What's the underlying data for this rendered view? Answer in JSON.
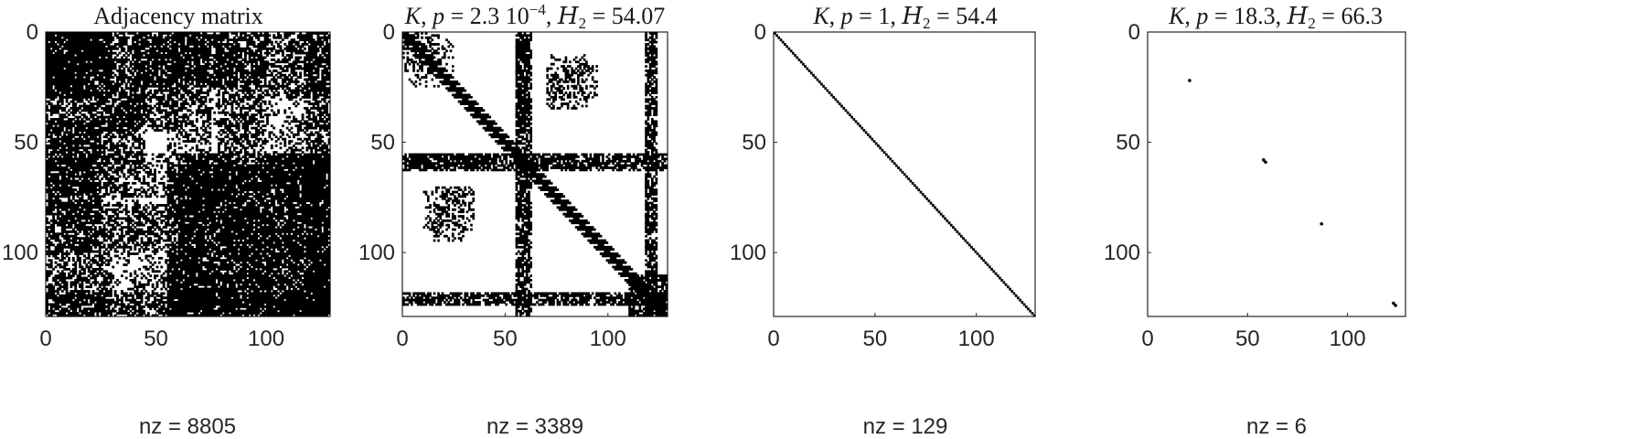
{
  "chart_data": [
    {
      "type": "spy",
      "title": "Adjacency matrix",
      "xlabel": "nz = 8805",
      "nz": 8805,
      "matrix_size": 129,
      "xlim": [
        0,
        129
      ],
      "ylim": [
        0,
        129
      ],
      "xticks": [
        0,
        50,
        100
      ],
      "yticks": [
        0,
        50,
        100
      ],
      "dense_blocks": [
        {
          "rows": [
            0,
            30
          ],
          "cols": [
            0,
            20
          ],
          "density": 0.8
        },
        {
          "rows": [
            0,
            45
          ],
          "cols": [
            20,
            60
          ],
          "density": 0.55
        },
        {
          "rows": [
            0,
            50
          ],
          "cols": [
            60,
            78
          ],
          "density": 0.25
        },
        {
          "rows": [
            5,
            55
          ],
          "cols": [
            78,
            100
          ],
          "density": 0.55
        },
        {
          "rows": [
            0,
            30
          ],
          "cols": [
            100,
            129
          ],
          "density": 0.35
        },
        {
          "rows": [
            40,
            100
          ],
          "cols": [
            0,
            25
          ],
          "density": 0.6
        },
        {
          "rows": [
            55,
            75
          ],
          "cols": [
            0,
            129
          ],
          "density": 0.35
        },
        {
          "rows": [
            55,
            129
          ],
          "cols": [
            60,
            129
          ],
          "density": 0.6
        },
        {
          "rows": [
            100,
            129
          ],
          "cols": [
            0,
            60
          ],
          "density": 0.3
        },
        {
          "rows": [
            0,
            129
          ],
          "cols": [
            118,
            129
          ],
          "density": 0.55
        }
      ]
    },
    {
      "type": "spy",
      "title_parts": {
        "k": "K",
        "p_label": "p",
        "p_value": "2.3 10",
        "p_exp": "−4",
        "h_label": "H",
        "h_sub": "2",
        "h_value": "54.07"
      },
      "xlabel": "nz = 3389",
      "nz": 3389,
      "matrix_size": 129,
      "xlim": [
        0,
        129
      ],
      "ylim": [
        0,
        129
      ],
      "xticks": [
        0,
        50,
        100
      ],
      "yticks": [
        0,
        50,
        100
      ],
      "diagonal_band": 4,
      "dense_blocks": [
        {
          "rows": [
            0,
            18
          ],
          "cols": [
            0,
            25
          ],
          "density": 0.25
        },
        {
          "rows": [
            5,
            45
          ],
          "cols": [
            55,
            62
          ],
          "density": 0.55
        },
        {
          "rows": [
            55,
            63
          ],
          "cols": [
            0,
            60
          ],
          "density": 0.65
        },
        {
          "rows": [
            55,
            63
          ],
          "cols": [
            60,
            129
          ],
          "density": 0.45
        },
        {
          "rows": [
            60,
            129
          ],
          "cols": [
            55,
            62
          ],
          "density": 0.5
        },
        {
          "rows": [
            10,
            35
          ],
          "cols": [
            70,
            90
          ],
          "density": 0.25
        },
        {
          "rows": [
            70,
            95
          ],
          "cols": [
            15,
            30
          ],
          "density": 0.25
        },
        {
          "rows": [
            118,
            124
          ],
          "cols": [
            0,
            129
          ],
          "density": 0.45
        },
        {
          "rows": [
            0,
            129
          ],
          "cols": [
            118,
            124
          ],
          "density": 0.45
        },
        {
          "rows": [
            110,
            129
          ],
          "cols": [
            110,
            129
          ],
          "density": 0.55
        }
      ]
    },
    {
      "type": "spy",
      "title_parts": {
        "k": "K",
        "p_label": "p",
        "p_value": "1",
        "h_label": "H",
        "h_sub": "2",
        "h_value": "54.4"
      },
      "xlabel": "nz = 129",
      "nz": 129,
      "matrix_size": 129,
      "xlim": [
        0,
        129
      ],
      "ylim": [
        0,
        129
      ],
      "xticks": [
        0,
        50,
        100
      ],
      "yticks": [
        0,
        50,
        100
      ],
      "diagonal": true
    },
    {
      "type": "spy",
      "title_parts": {
        "k": "K",
        "p_label": "p",
        "p_value": "18.3",
        "h_label": "H",
        "h_sub": "2",
        "h_value": "66.3"
      },
      "xlabel": "nz = 6",
      "nz": 6,
      "matrix_size": 129,
      "xlim": [
        0,
        129
      ],
      "ylim": [
        0,
        129
      ],
      "xticks": [
        0,
        50,
        100
      ],
      "yticks": [
        0,
        50,
        100
      ],
      "points": [
        [
          21,
          22
        ],
        [
          58,
          58
        ],
        [
          59,
          59
        ],
        [
          87,
          87
        ],
        [
          123,
          123
        ],
        [
          124,
          124
        ]
      ]
    }
  ]
}
